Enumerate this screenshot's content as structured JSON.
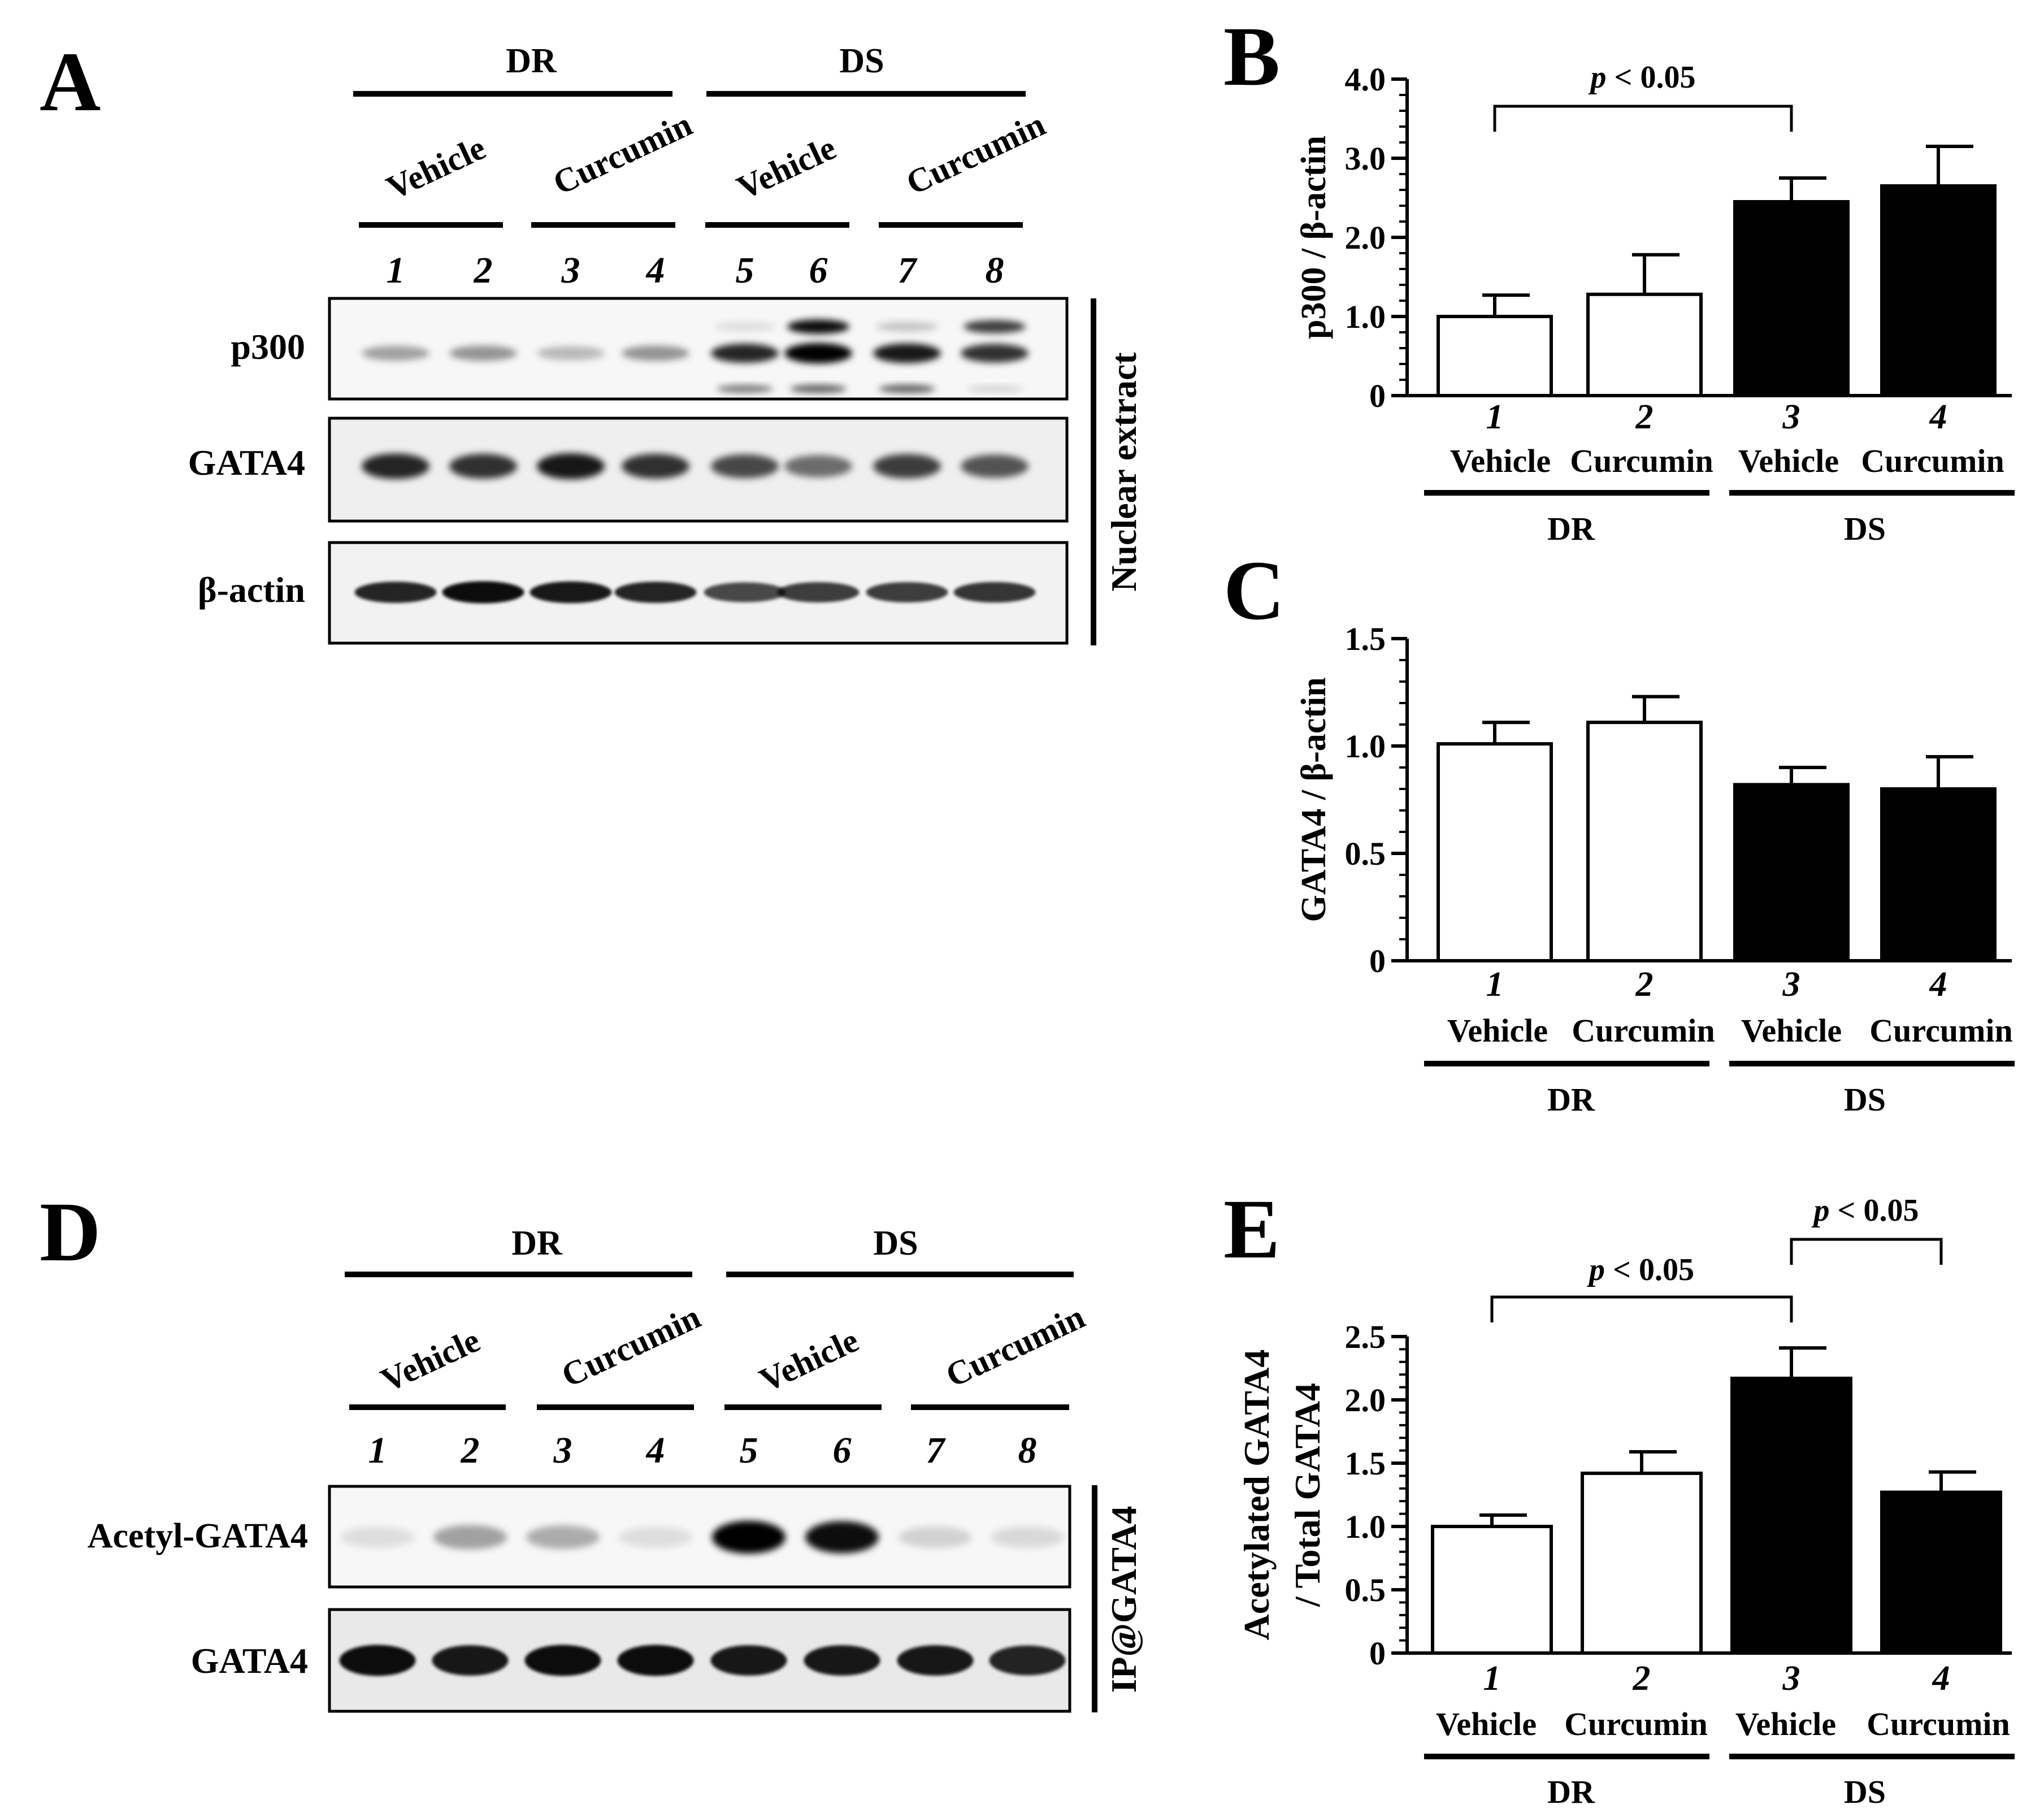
{
  "panels": {
    "A": {
      "letter": "A",
      "groups": [
        "DR",
        "DS"
      ],
      "treatments": [
        "Vehicle",
        "Curcumin",
        "Vehicle",
        "Curcumin"
      ],
      "lanes": [
        "1",
        "2",
        "3",
        "4",
        "5",
        "6",
        "7",
        "8"
      ],
      "blots": [
        "p300",
        "GATA4",
        "β-actin"
      ],
      "side_label": "Nuclear extract"
    },
    "D": {
      "letter": "D",
      "groups": [
        "DR",
        "DS"
      ],
      "treatments": [
        "Vehicle",
        "Curcumin",
        "Vehicle",
        "Curcumin"
      ],
      "lanes": [
        "1",
        "2",
        "3",
        "4",
        "5",
        "6",
        "7",
        "8"
      ],
      "blots": [
        "Acetyl-GATA4",
        "GATA4"
      ],
      "side_label": "IP@GATA4"
    }
  },
  "band_intensity": {
    "A_p300": [
      0.35,
      0.4,
      0.25,
      0.4,
      0.85,
      1.0,
      0.9,
      0.8
    ],
    "A_gata4": [
      0.85,
      0.8,
      0.9,
      0.8,
      0.7,
      0.55,
      0.75,
      0.65
    ],
    "A_actin": [
      0.85,
      0.95,
      0.9,
      0.85,
      0.7,
      0.75,
      0.75,
      0.78
    ],
    "D_acetyl": [
      0.1,
      0.35,
      0.3,
      0.1,
      1.0,
      0.95,
      0.15,
      0.12
    ],
    "D_gata4": [
      0.95,
      0.9,
      0.95,
      0.95,
      0.9,
      0.9,
      0.9,
      0.85
    ]
  },
  "chart_data": [
    {
      "panel": "B",
      "type": "bar",
      "categories": [
        "1",
        "2",
        "3",
        "4"
      ],
      "treatments": [
        "Vehicle",
        "Curcumin",
        "Vehicle",
        "Curcumin"
      ],
      "groups": [
        "DR",
        "DS"
      ],
      "values": [
        1.0,
        1.28,
        2.45,
        2.65
      ],
      "errors": [
        0.27,
        0.5,
        0.3,
        0.5
      ],
      "fills": [
        "#ffffff",
        "#ffffff",
        "#000000",
        "#000000"
      ],
      "ylabel": "p300 / β-actin",
      "yticks": [
        "0",
        "1.0",
        "2.0",
        "3.0",
        "4.0"
      ],
      "ylim": [
        0,
        4.0
      ],
      "annotations": [
        {
          "from": 1,
          "to": 3,
          "text": "p < 0.05"
        }
      ]
    },
    {
      "panel": "C",
      "type": "bar",
      "categories": [
        "1",
        "2",
        "3",
        "4"
      ],
      "treatments": [
        "Vehicle",
        "Curcumin",
        "Vehicle",
        "Curcumin"
      ],
      "groups": [
        "DR",
        "DS"
      ],
      "values": [
        1.01,
        1.11,
        0.82,
        0.8
      ],
      "errors": [
        0.1,
        0.12,
        0.08,
        0.15
      ],
      "fills": [
        "#ffffff",
        "#ffffff",
        "#000000",
        "#000000"
      ],
      "ylabel": "GATA4 / β-actin",
      "yticks": [
        "0",
        "0.5",
        "1.0",
        "1.5"
      ],
      "ylim": [
        0,
        1.5
      ],
      "annotations": []
    },
    {
      "panel": "E",
      "type": "bar",
      "categories": [
        "1",
        "2",
        "3",
        "4"
      ],
      "treatments": [
        "Vehicle",
        "Curcumin",
        "Vehicle",
        "Curcumin"
      ],
      "groups": [
        "DR",
        "DS"
      ],
      "values": [
        1.0,
        1.42,
        2.17,
        1.27
      ],
      "errors": [
        0.09,
        0.17,
        0.24,
        0.16
      ],
      "fills": [
        "#ffffff",
        "#ffffff",
        "#000000",
        "#000000"
      ],
      "ylabel": "Acetylated GATA4",
      "ylabel2": "/ Total GATA4",
      "yticks": [
        "0",
        "0.5",
        "1.0",
        "1.5",
        "2.0",
        "2.5"
      ],
      "ylim": [
        0,
        2.5
      ],
      "annotations": [
        {
          "from": 1,
          "to": 3,
          "text": "p < 0.05"
        },
        {
          "from": 3,
          "to": 4,
          "text": "p < 0.05"
        }
      ]
    }
  ]
}
